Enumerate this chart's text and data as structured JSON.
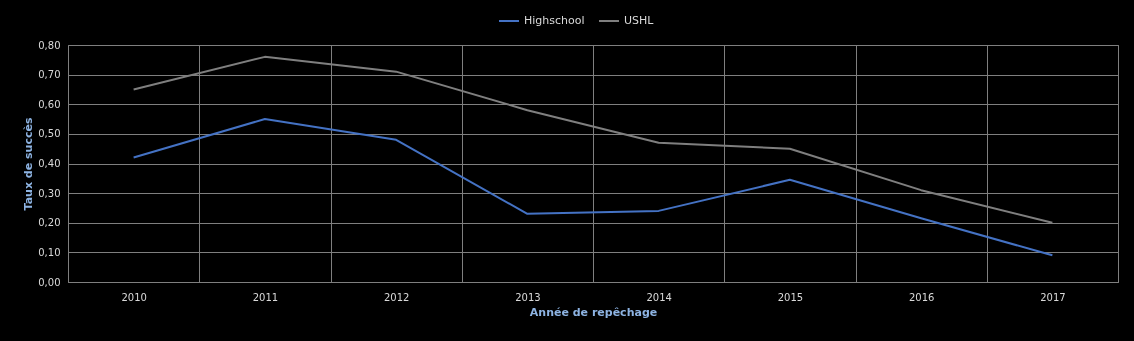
{
  "chart_data": {
    "type": "line",
    "xlabel": "Année de repêchage",
    "ylabel": "Taux de succès",
    "categories": [
      "2010",
      "2011",
      "2012",
      "2013",
      "2014",
      "2015",
      "2016",
      "2017"
    ],
    "series": [
      {
        "name": "Highschool",
        "color": "#4472c4",
        "values": [
          0.42,
          0.55,
          0.48,
          0.23,
          0.24,
          0.345,
          0.215,
          0.09
        ]
      },
      {
        "name": "USHL",
        "color": "#7f7f7f",
        "values": [
          0.65,
          0.76,
          0.71,
          0.58,
          0.47,
          0.45,
          0.31,
          0.2
        ]
      }
    ],
    "ylim": [
      0,
      0.8
    ],
    "yticks": [
      {
        "value": 0,
        "label": "0,00"
      },
      {
        "value": 0.1,
        "label": "0,10"
      },
      {
        "value": 0.2,
        "label": "0,20"
      },
      {
        "value": 0.3,
        "label": "0,30"
      },
      {
        "value": 0.4,
        "label": "0,40"
      },
      {
        "value": 0.5,
        "label": "0,50"
      },
      {
        "value": 0.6,
        "label": "0,60"
      },
      {
        "value": 0.7,
        "label": "0,70"
      },
      {
        "value": 0.8,
        "label": "0,80"
      }
    ],
    "grid": true,
    "legend": "top",
    "marker": "none",
    "line_style": "solid"
  }
}
